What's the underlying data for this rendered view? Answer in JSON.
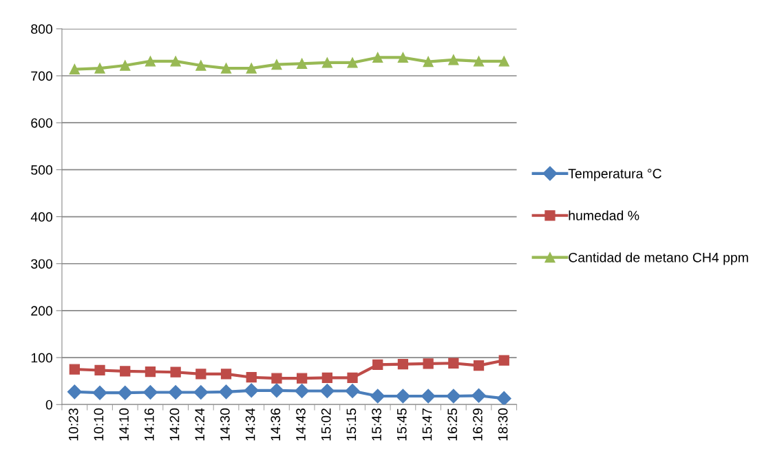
{
  "chart_data": {
    "type": "line",
    "categories": [
      "10:23",
      "10:10",
      "14:10",
      "14:16",
      "14:20",
      "14:24",
      "14:30",
      "14:34",
      "14:36",
      "14:43",
      "15:02",
      "15:15",
      "15:43",
      "15:45",
      "15:47",
      "16:25",
      "16:29",
      "18:30"
    ],
    "series": [
      {
        "name": "Temperatura °C",
        "color": "#4a7ebb",
        "marker": "diamond",
        "values": [
          27,
          25,
          25,
          26,
          26,
          26,
          27,
          30,
          30,
          29,
          29,
          29,
          18,
          18,
          18,
          18,
          19,
          13
        ]
      },
      {
        "name": "humedad %",
        "color": "#be4b48",
        "marker": "square",
        "values": [
          75,
          73,
          71,
          70,
          69,
          65,
          65,
          58,
          56,
          56,
          57,
          57,
          85,
          86,
          87,
          88,
          83,
          94
        ]
      },
      {
        "name": "Cantidad de metano CH4 ppm",
        "color": "#98b954",
        "marker": "triangle",
        "values": [
          714,
          716,
          722,
          731,
          731,
          722,
          716,
          716,
          724,
          726,
          728,
          728,
          739,
          739,
          730,
          734,
          731,
          731
        ]
      }
    ],
    "ylim": [
      0,
      800
    ],
    "yticks": [
      0,
      100,
      200,
      300,
      400,
      500,
      600,
      700,
      800
    ],
    "grid": "y",
    "legend": "right"
  }
}
